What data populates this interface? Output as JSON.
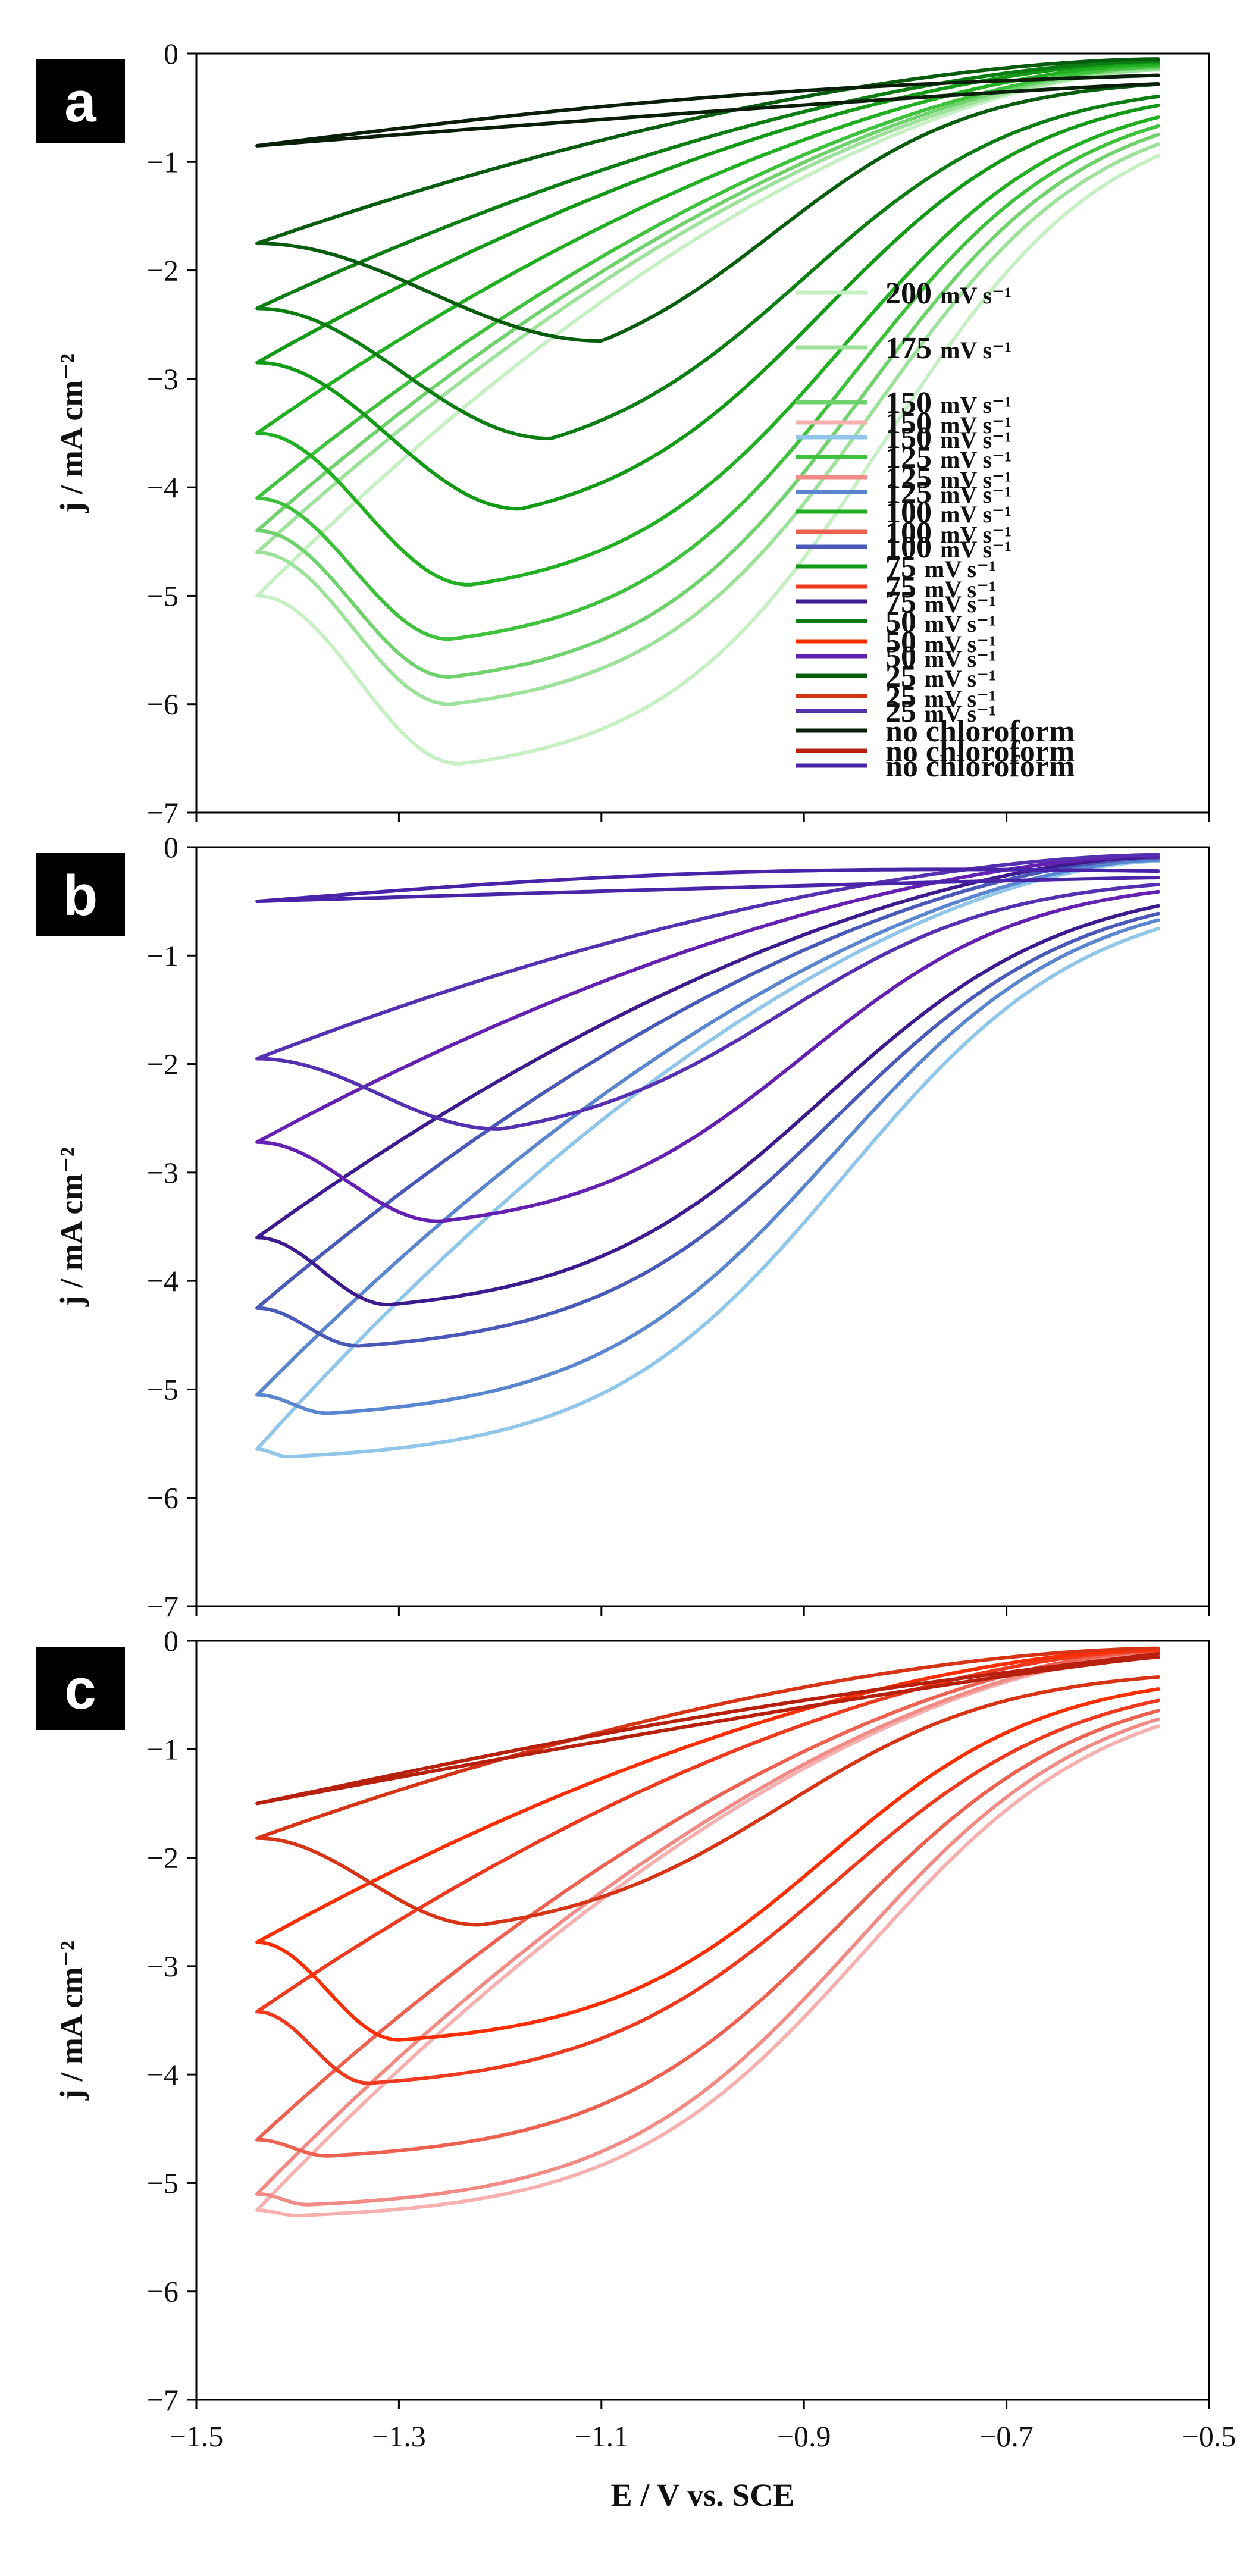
{
  "chart_data": [
    {
      "panel": "a",
      "type": "line",
      "xlabel": "",
      "ylabel": "j / mA cm⁻²",
      "xlim": [
        -1.5,
        -0.5
      ],
      "ylim": [
        -7,
        0
      ],
      "xticks": [
        "−1.5",
        "−1.3",
        "−1.1",
        "−0.9",
        "−0.7",
        "−0.5"
      ],
      "yticks": [
        "0",
        "−1",
        "−2",
        "−3",
        "−4",
        "−5",
        "−6",
        "−7"
      ],
      "x_start": -0.55,
      "x_vertex": -1.44,
      "legend_position": "right",
      "series": [
        {
          "name": "200",
          "unit": "mV s⁻¹",
          "color": "#c6efc3",
          "y_start": -0.45,
          "y_vertex": -5.0,
          "fwd_knee": -0.82,
          "fwd_width": 0.11,
          "peak_x": -1.24,
          "peak_y": -6.55,
          "ret_end": -0.15
        },
        {
          "name": "175",
          "unit": "mV s⁻¹",
          "color": "#9de29a",
          "y_start": -0.42,
          "y_vertex": -4.6,
          "fwd_knee": -0.83,
          "fwd_width": 0.11,
          "peak_x": -1.25,
          "peak_y": -6.0,
          "ret_end": -0.15
        },
        {
          "name": "150",
          "unit": "mV s⁻¹",
          "color": "#6fd26c",
          "y_start": -0.38,
          "y_vertex": -4.4,
          "fwd_knee": -0.84,
          "fwd_width": 0.11,
          "peak_x": -1.25,
          "peak_y": -5.75,
          "ret_end": -0.13
        },
        {
          "name": "125",
          "unit": "mV s⁻¹",
          "color": "#3ec23c",
          "y_start": -0.35,
          "y_vertex": -4.1,
          "fwd_knee": -0.85,
          "fwd_width": 0.11,
          "peak_x": -1.25,
          "peak_y": -5.4,
          "ret_end": -0.12
        },
        {
          "name": "100",
          "unit": "mV s⁻¹",
          "color": "#21b021",
          "y_start": -0.32,
          "y_vertex": -3.5,
          "fwd_knee": -0.86,
          "fwd_width": 0.11,
          "peak_x": -1.23,
          "peak_y": -4.9,
          "ret_end": -0.1
        },
        {
          "name": "75",
          "unit": "mV s⁻¹",
          "color": "#129a16",
          "y_start": -0.28,
          "y_vertex": -2.85,
          "fwd_knee": -0.88,
          "fwd_width": 0.11,
          "peak_x": -1.18,
          "peak_y": -4.2,
          "ret_end": -0.08
        },
        {
          "name": "50",
          "unit": "mV s⁻¹",
          "color": "#0b7d12",
          "y_start": -0.25,
          "y_vertex": -2.35,
          "fwd_knee": -0.9,
          "fwd_width": 0.11,
          "peak_x": -1.15,
          "peak_y": -3.55,
          "ret_end": -0.07
        },
        {
          "name": "25",
          "unit": "mV s⁻¹",
          "color": "#075c0d",
          "y_start": -0.22,
          "y_vertex": -1.75,
          "fwd_knee": -0.93,
          "fwd_width": 0.1,
          "peak_x": -1.1,
          "peak_y": -2.65,
          "ret_end": -0.05
        },
        {
          "name": "no chloroform",
          "unit": "",
          "color": "#0a1f0a",
          "y_start": -0.28,
          "y_vertex": -0.85,
          "flat": true,
          "ret_end": -0.2
        }
      ]
    },
    {
      "panel": "b",
      "type": "line",
      "xlabel": "",
      "ylabel": "j / mA cm⁻²",
      "xlim": [
        -1.5,
        -0.5
      ],
      "ylim": [
        -7,
        0
      ],
      "xticks": [
        "−1.5",
        "−1.3",
        "−1.1",
        "−0.9",
        "−0.7",
        "−0.5"
      ],
      "yticks": [
        "0",
        "−1",
        "−2",
        "−3",
        "−4",
        "−5",
        "−6",
        "−7"
      ],
      "x_start": -0.55,
      "x_vertex": -1.44,
      "legend_position": "bottom-right",
      "series": [
        {
          "name": "150",
          "unit": "mV s⁻¹",
          "color": "#8fc6ea",
          "y_start": -0.38,
          "y_vertex": -5.55,
          "fwd_knee": -0.86,
          "fwd_width": 0.12,
          "peak_x": -1.41,
          "peak_y": -5.62,
          "ret_end": -0.13
        },
        {
          "name": "125",
          "unit": "mV s⁻¹",
          "color": "#5a86cf",
          "y_start": -0.35,
          "y_vertex": -5.05,
          "fwd_knee": -0.87,
          "fwd_width": 0.12,
          "peak_x": -1.37,
          "peak_y": -5.22,
          "ret_end": -0.12
        },
        {
          "name": "100",
          "unit": "mV s⁻¹",
          "color": "#4a58b8",
          "y_start": -0.33,
          "y_vertex": -4.25,
          "fwd_knee": -0.87,
          "fwd_width": 0.12,
          "peak_x": -1.34,
          "peak_y": -4.6,
          "ret_end": -0.1
        },
        {
          "name": "75",
          "unit": "mV s⁻¹",
          "color": "#3d1a8e",
          "y_start": -0.3,
          "y_vertex": -3.6,
          "fwd_knee": -0.88,
          "fwd_width": 0.12,
          "peak_x": -1.31,
          "peak_y": -4.22,
          "ret_end": -0.09
        },
        {
          "name": "50",
          "unit": "mV s⁻¹",
          "color": "#6420b0",
          "y_start": -0.28,
          "y_vertex": -2.72,
          "fwd_knee": -0.9,
          "fwd_width": 0.11,
          "peak_x": -1.26,
          "peak_y": -3.45,
          "ret_end": -0.08
        },
        {
          "name": "25",
          "unit": "mV s⁻¹",
          "color": "#5530b0",
          "y_start": -0.26,
          "y_vertex": -1.95,
          "fwd_knee": -0.92,
          "fwd_width": 0.11,
          "peak_x": -1.2,
          "peak_y": -2.6,
          "ret_end": -0.07
        },
        {
          "name": "no chloroform",
          "unit": "",
          "color": "#4a24a8",
          "y_start": -0.28,
          "y_vertex": -0.5,
          "flat": true,
          "ret_end": -0.22
        }
      ]
    },
    {
      "panel": "c",
      "type": "line",
      "xlabel": "E / V vs. SCE",
      "ylabel": "j / mA cm⁻²",
      "xlim": [
        -1.5,
        -0.5
      ],
      "ylim": [
        -7,
        0
      ],
      "xticks": [
        "−1.5",
        "−1.3",
        "−1.1",
        "−0.9",
        "−0.7",
        "−0.5"
      ],
      "yticks": [
        "0",
        "−1",
        "−2",
        "−3",
        "−4",
        "−5",
        "−6",
        "−7"
      ],
      "x_start": -0.55,
      "x_vertex": -1.44,
      "legend_position": "bottom-right",
      "series": [
        {
          "name": "150",
          "unit": "mV s⁻¹",
          "color": "#f7b0b0",
          "y_start": -0.38,
          "y_vertex": -5.25,
          "fwd_knee": -0.84,
          "fwd_width": 0.12,
          "peak_x": -1.4,
          "peak_y": -5.3,
          "ret_end": -0.13
        },
        {
          "name": "125",
          "unit": "mV s⁻¹",
          "color": "#f28b85",
          "y_start": -0.35,
          "y_vertex": -5.1,
          "fwd_knee": -0.85,
          "fwd_width": 0.12,
          "peak_x": -1.39,
          "peak_y": -5.2,
          "ret_end": -0.12
        },
        {
          "name": "100",
          "unit": "mV s⁻¹",
          "color": "#ee6050",
          "y_start": -0.33,
          "y_vertex": -4.6,
          "fwd_knee": -0.86,
          "fwd_width": 0.12,
          "peak_x": -1.37,
          "peak_y": -4.75,
          "ret_end": -0.1
        },
        {
          "name": "75",
          "unit": "mV s⁻¹",
          "color": "#f03a20",
          "y_start": -0.3,
          "y_vertex": -3.42,
          "fwd_knee": -0.87,
          "fwd_width": 0.12,
          "peak_x": -1.33,
          "peak_y": -4.08,
          "ret_end": -0.09
        },
        {
          "name": "50",
          "unit": "mV s⁻¹",
          "color": "#ff2e00",
          "y_start": -0.28,
          "y_vertex": -2.78,
          "fwd_knee": -0.88,
          "fwd_width": 0.11,
          "peak_x": -1.3,
          "peak_y": -3.68,
          "ret_end": -0.08
        },
        {
          "name": "25",
          "unit": "mV s⁻¹",
          "color": "#d63414",
          "y_start": -0.25,
          "y_vertex": -1.82,
          "fwd_knee": -0.92,
          "fwd_width": 0.11,
          "peak_x": -1.22,
          "peak_y": -2.62,
          "ret_end": -0.07
        },
        {
          "name": "no chloroform",
          "unit": "",
          "color": "#b8200e",
          "y_start": -0.15,
          "y_vertex": -1.5,
          "flat": true,
          "ret_end": -0.12
        }
      ]
    }
  ]
}
